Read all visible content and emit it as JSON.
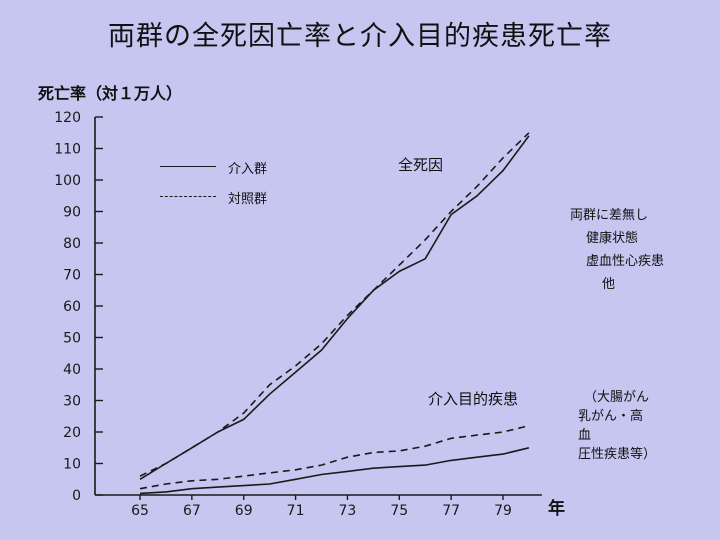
{
  "title": "両群の全死因亡率と介入目的疾患死亡率",
  "chart_data": {
    "type": "line",
    "ylabel": "死亡率（対１万人）",
    "xlabel": "年",
    "ylim": [
      0,
      120
    ],
    "yticks": [
      0,
      10,
      20,
      30,
      40,
      50,
      60,
      70,
      80,
      90,
      100,
      110,
      120
    ],
    "xlim": [
      60,
      80.5
    ],
    "xticks": [
      65,
      67,
      69,
      71,
      73,
      75,
      77,
      79
    ],
    "legend": [
      "介入群",
      "対照群"
    ],
    "series": [
      {
        "name": "介入群",
        "group": "全死因",
        "style": "solid",
        "x": [
          65,
          66,
          67,
          68,
          69,
          70,
          71,
          72,
          73,
          74,
          75,
          76,
          77,
          78,
          79,
          80
        ],
        "y": [
          5,
          10,
          15,
          20,
          24,
          32,
          39,
          46,
          56,
          65,
          71,
          75,
          89,
          95,
          103,
          114
        ]
      },
      {
        "name": "対照群",
        "group": "全死因",
        "style": "dashed",
        "x": [
          65,
          66,
          67,
          68,
          69,
          70,
          71,
          72,
          73,
          74,
          75,
          76,
          77,
          78,
          79,
          80
        ],
        "y": [
          6,
          10,
          15,
          20,
          26,
          35,
          41,
          48,
          57,
          65,
          73,
          81,
          90,
          98,
          107,
          115
        ]
      },
      {
        "name": "介入群",
        "group": "介入目的疾患",
        "style": "solid",
        "x": [
          65,
          66,
          67,
          68,
          69,
          70,
          71,
          72,
          73,
          74,
          75,
          76,
          77,
          78,
          79,
          80
        ],
        "y": [
          0.5,
          1,
          2,
          2.5,
          3,
          3.5,
          5,
          6.5,
          7.5,
          8.5,
          9,
          9.5,
          11,
          12,
          13,
          15
        ]
      },
      {
        "name": "対照群",
        "group": "介入目的疾患",
        "style": "dashed",
        "x": [
          65,
          66,
          67,
          68,
          69,
          70,
          71,
          72,
          73,
          74,
          75,
          76,
          77,
          78,
          79,
          80
        ],
        "y": [
          2,
          3.5,
          4.5,
          5,
          6,
          7,
          8,
          9.5,
          12,
          13.5,
          14,
          15.5,
          18,
          19,
          20,
          22
        ]
      }
    ],
    "annotations": {
      "all_cause": "全死因",
      "target_disease": "介入目的疾患",
      "no_diff_title": "両群に差無し",
      "no_diff_items": [
        "健康状態",
        "虚血性心疾患",
        "他"
      ],
      "target_note": [
        "（大腸がん",
        "乳がん・高",
        "血",
        "圧性疾患等）"
      ]
    }
  },
  "colors": {
    "background": "#c6c6f0",
    "ink": "#1a1a1a"
  }
}
